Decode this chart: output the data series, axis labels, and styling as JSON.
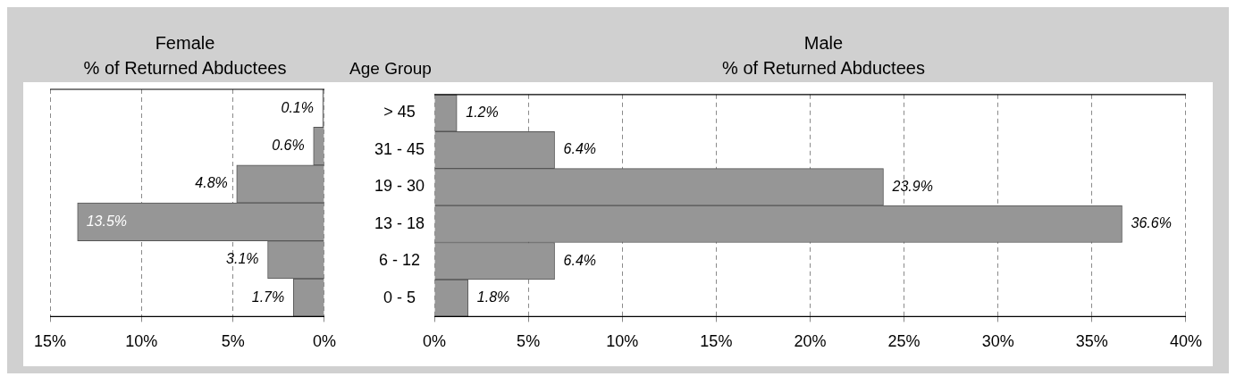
{
  "chart_data": [
    {
      "type": "bar",
      "orientation": "horizontal",
      "title": "Female",
      "subtitle": "% of Returned Abductees",
      "categories": [
        null,
        null,
        null,
        null,
        null,
        null
      ],
      "values": [
        0.1,
        0.6,
        4.8,
        13.5,
        3.1,
        1.7
      ],
      "value_labels": [
        "0.1%",
        "0.6%",
        "4.8%",
        "13.5%",
        "3.1%",
        "1.7%"
      ],
      "color": "#969696",
      "xlim": [
        15,
        0
      ],
      "xticks": [
        {
          "value": 15,
          "label": "15%"
        },
        {
          "value": 10,
          "label": "10%"
        },
        {
          "value": 5,
          "label": "5%"
        },
        {
          "value": 0,
          "label": "0%"
        }
      ],
      "grid": "x",
      "tick_labels": "x",
      "legend": false
    },
    {
      "type": "bar",
      "orientation": "horizontal",
      "title": "Male",
      "subtitle": "% of Returned Abductees",
      "ylabel": "Age Group",
      "categories": [
        "> 45",
        "31 - 45",
        "19 - 30",
        "13 - 18",
        "6 - 12",
        "0 - 5"
      ],
      "values": [
        1.2,
        6.4,
        23.9,
        36.6,
        6.4,
        1.8
      ],
      "value_labels": [
        "1.2%",
        "6.4%",
        "23.9%",
        "36.6%",
        "6.4%",
        "1.8%"
      ],
      "color": "#969696",
      "xlim": [
        0,
        40
      ],
      "xticks": [
        {
          "value": 0,
          "label": "0%"
        },
        {
          "value": 5,
          "label": "5%"
        },
        {
          "value": 10,
          "label": "10%"
        },
        {
          "value": 15,
          "label": "15%"
        },
        {
          "value": 20,
          "label": "20%"
        },
        {
          "value": 25,
          "label": "25%"
        },
        {
          "value": 30,
          "label": "30%"
        },
        {
          "value": 35,
          "label": "35%"
        },
        {
          "value": 40,
          "label": "40%"
        }
      ],
      "grid": "x",
      "legend": false
    }
  ]
}
